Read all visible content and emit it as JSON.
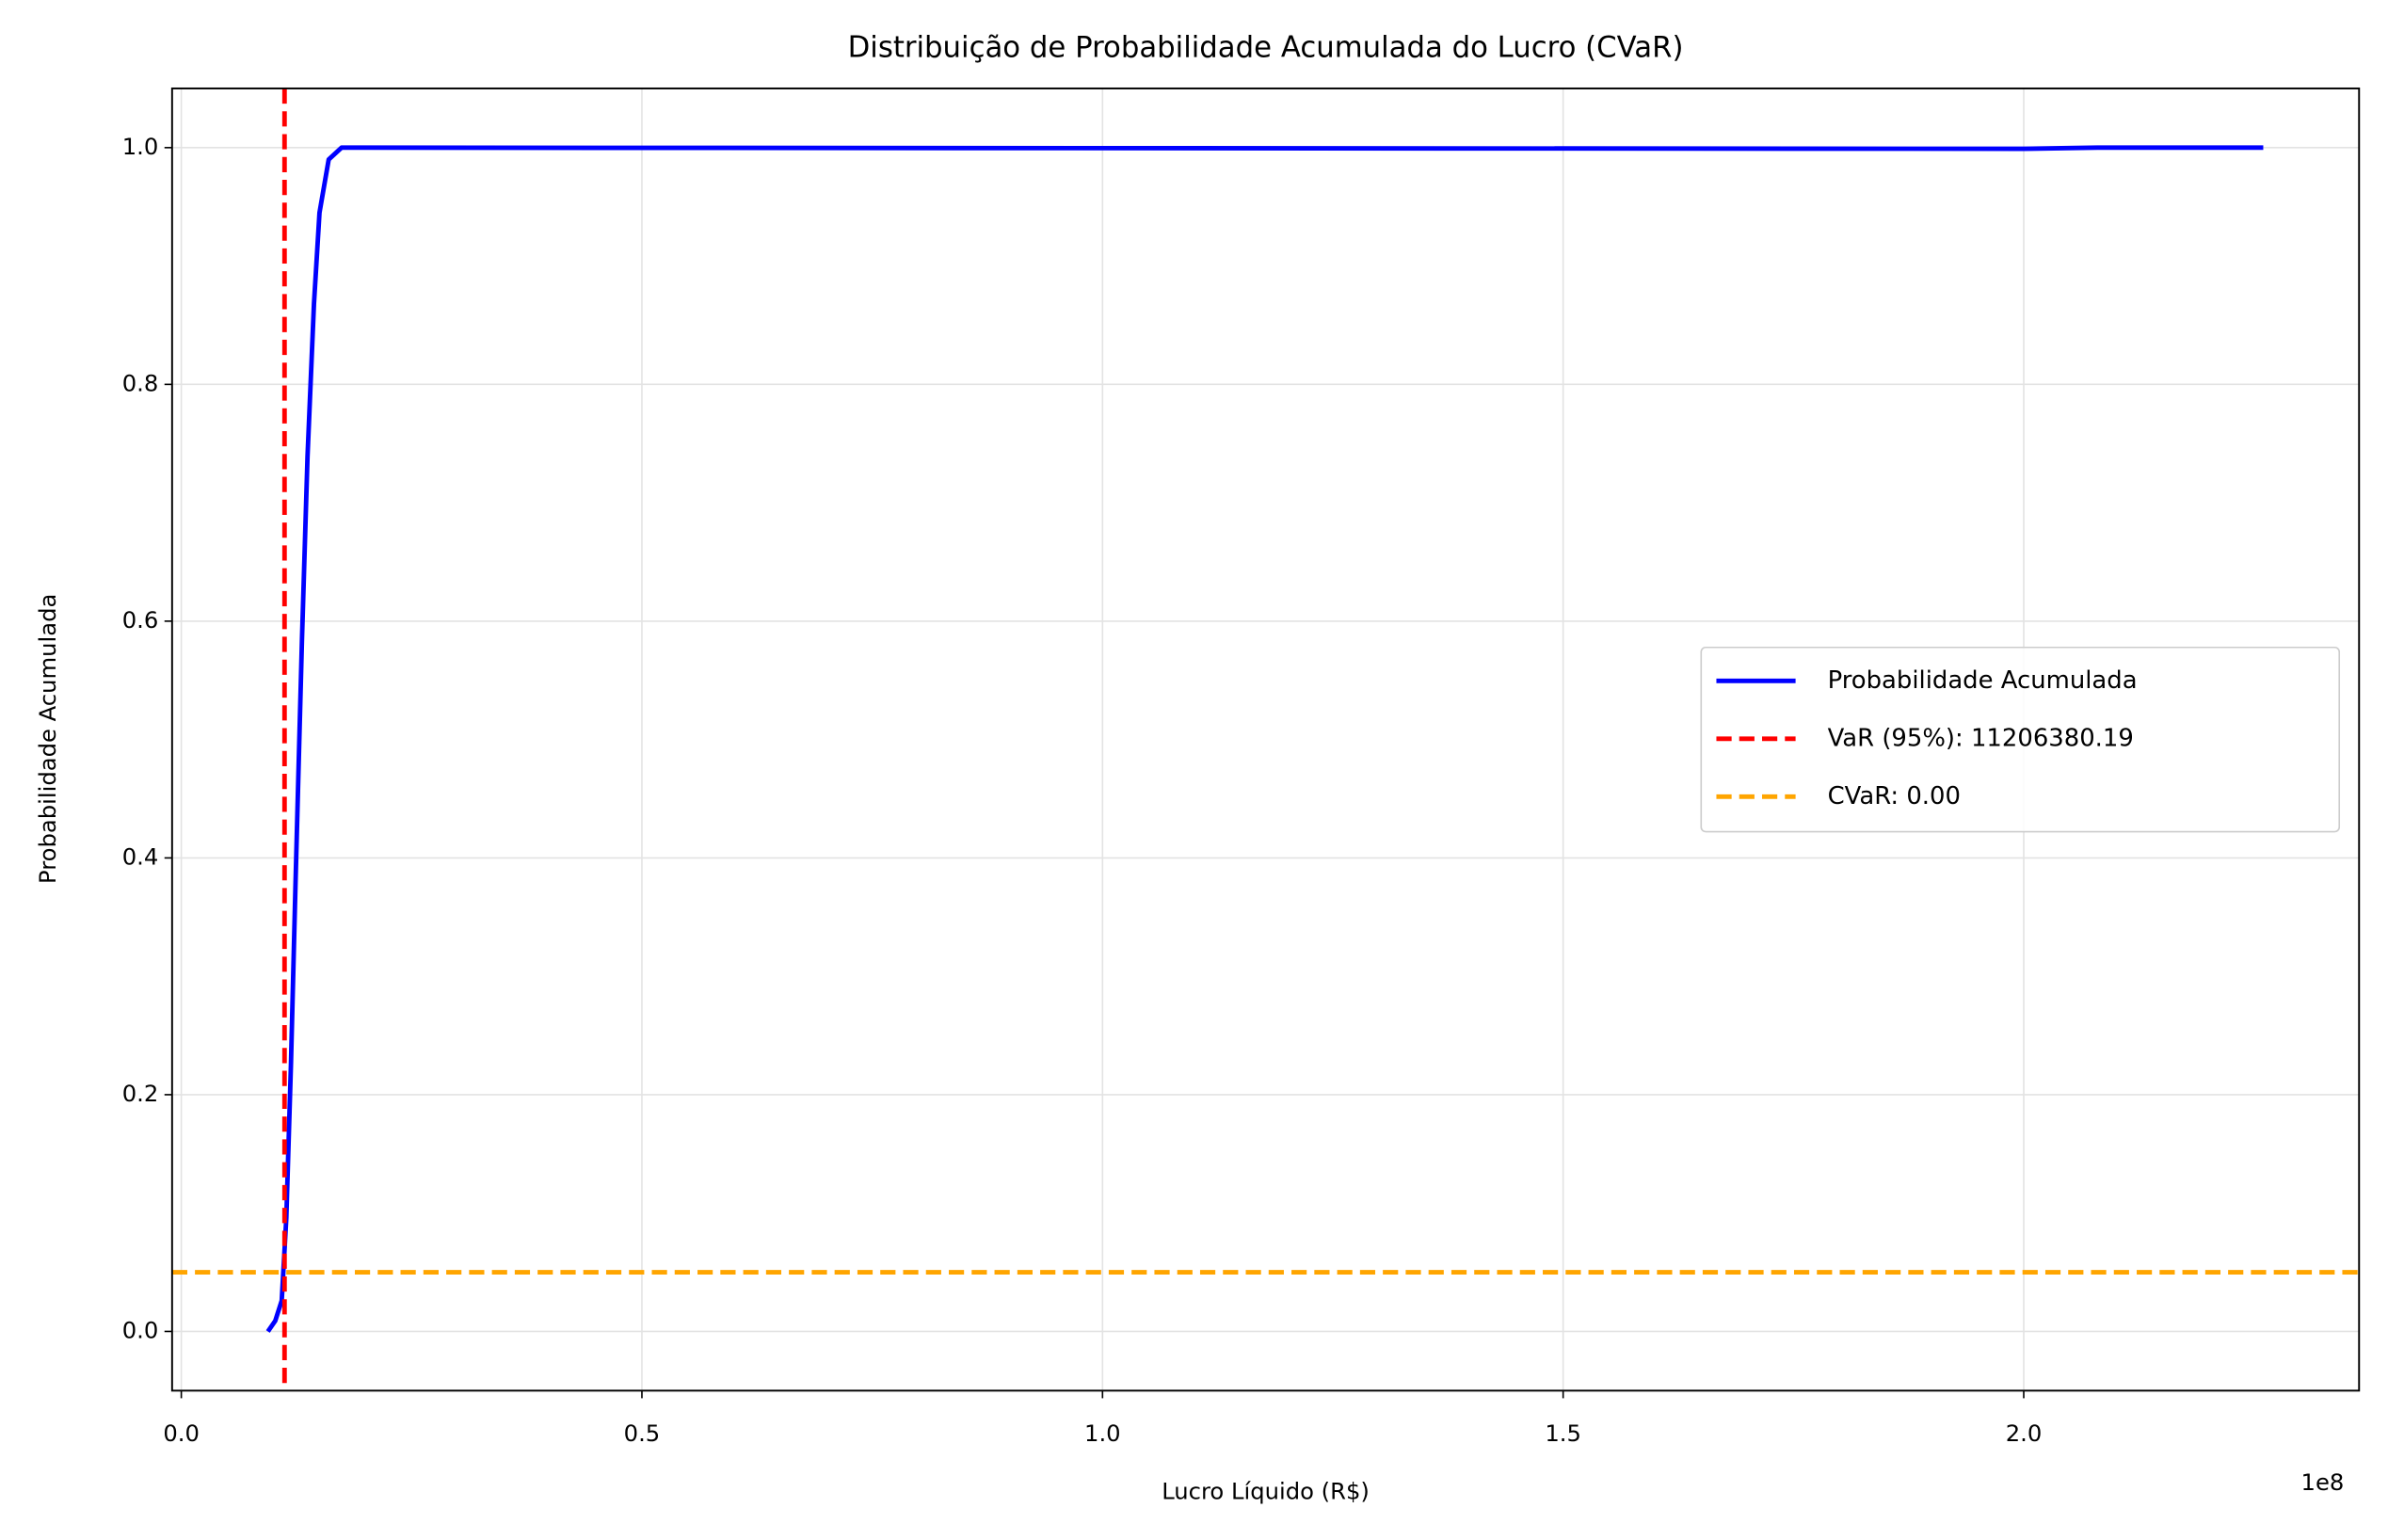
{
  "chart_data": {
    "type": "line",
    "title": "Distribuição de Probabilidade Acumulada do Lucro (CVaR)",
    "xlabel": "Lucro Líquido (R$)",
    "ylabel": "Probabilidade Acumulada",
    "x_offset_label": "1e8",
    "series": [
      {
        "name": "Probabilidade Acumulada",
        "color": "#0000ff",
        "x": [
          9400000,
          10200000,
          10900000,
          11400000,
          11900000,
          12400000,
          13100000,
          13700000,
          14400000,
          15000000,
          16000000,
          17400000,
          200000000,
          208000000,
          226000000
        ],
        "values": [
          0,
          0.009,
          0.026,
          0.096,
          0.225,
          0.379,
          0.585,
          0.739,
          0.868,
          0.945,
          0.99,
          1,
          0.999,
          1,
          1
        ]
      }
    ],
    "vlines": [
      {
        "name": "VaR (95%): 11206380.19",
        "x": 11206380.19,
        "color": "#ff0000"
      }
    ],
    "hlines": [
      {
        "name": "CVaR: 0.00",
        "y": 0.05,
        "color": "#ffa500"
      }
    ],
    "xlim": [
      -1000000,
      236400000
    ],
    "xticks": [
      {
        "value": 0,
        "label": "0.0"
      },
      {
        "value": 50000000,
        "label": "0.5"
      },
      {
        "value": 100000000,
        "label": "1.0"
      },
      {
        "value": 150000000,
        "label": "1.5"
      },
      {
        "value": 200000000,
        "label": "2.0"
      }
    ],
    "ylim": [
      -0.05,
      1.05
    ],
    "yticks": [
      {
        "value": 0,
        "label": "0.0"
      },
      0.2,
      0.4,
      0.6,
      0.8,
      {
        "value": 1,
        "label": "1.0"
      }
    ],
    "grid": true,
    "legend": "center right"
  }
}
